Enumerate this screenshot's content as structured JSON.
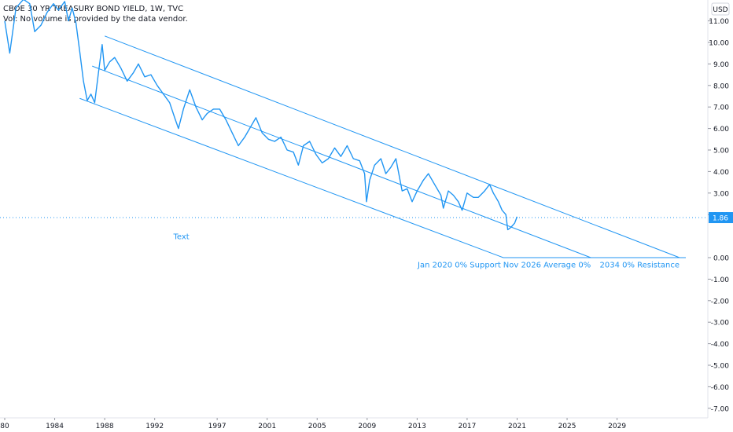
{
  "header": {
    "title": "CBOE 30 YR TREASURY BOND YIELD, 1W, TVC",
    "subtitle": "Vol: No volume is provided by the data vendor."
  },
  "colors": {
    "line": "#2196f3",
    "axis_text": "#131722",
    "price_tag_bg": "#2196f3",
    "axis_border": "#e0e3eb"
  },
  "chart_data": {
    "type": "line",
    "currency_label": "USD",
    "current_price": "1.86",
    "x_range": [
      1980,
      2034.5
    ],
    "ylim": [
      -7.3,
      11.9
    ],
    "x_ticks": [
      "80",
      "1984",
      "1988",
      "1992",
      "1997",
      "2001",
      "2005",
      "2009",
      "2013",
      "2017",
      "2021",
      "2025",
      "2029"
    ],
    "x_tick_years": [
      1980,
      1984,
      1988,
      1992,
      1997,
      2001,
      2005,
      2009,
      2013,
      2017,
      2021,
      2025,
      2029
    ],
    "y_ticks": [
      "11.00",
      "10.00",
      "9.00",
      "8.00",
      "7.00",
      "6.00",
      "5.00",
      "4.00",
      "3.00",
      "2.00",
      "0.00",
      "-1.00",
      "-2.00",
      "-3.00",
      "-4.00",
      "-5.00",
      "-6.00",
      "-7.00"
    ],
    "y_tick_values": [
      11,
      10,
      9,
      8,
      7,
      6,
      5,
      4,
      3,
      2,
      0,
      -1,
      -2,
      -3,
      -4,
      -5,
      -6,
      -7
    ],
    "series": [
      {
        "values": [
          [
            1980.0,
            11.0
          ],
          [
            1980.4,
            9.5
          ],
          [
            1980.9,
            11.6
          ],
          [
            1981.5,
            12.0
          ],
          [
            1982.0,
            11.8
          ],
          [
            1982.4,
            10.5
          ],
          [
            1982.9,
            10.8
          ],
          [
            1983.4,
            11.4
          ],
          [
            1983.9,
            11.8
          ],
          [
            1984.3,
            11.5
          ],
          [
            1984.8,
            11.9
          ],
          [
            1985.1,
            11.0
          ],
          [
            1985.4,
            11.6
          ],
          [
            1985.7,
            10.9
          ],
          [
            1986.0,
            9.6
          ],
          [
            1986.3,
            8.2
          ],
          [
            1986.6,
            7.3
          ],
          [
            1986.9,
            7.6
          ],
          [
            1987.2,
            7.2
          ],
          [
            1987.5,
            8.6
          ],
          [
            1987.8,
            9.9
          ],
          [
            1988.0,
            8.7
          ],
          [
            1988.4,
            9.1
          ],
          [
            1988.8,
            9.3
          ],
          [
            1989.3,
            8.8
          ],
          [
            1989.8,
            8.2
          ],
          [
            1990.3,
            8.6
          ],
          [
            1990.7,
            9.0
          ],
          [
            1991.2,
            8.4
          ],
          [
            1991.7,
            8.5
          ],
          [
            1992.2,
            8.0
          ],
          [
            1992.7,
            7.6
          ],
          [
            1993.2,
            7.2
          ],
          [
            1993.6,
            6.5
          ],
          [
            1993.9,
            6.0
          ],
          [
            1994.3,
            6.9
          ],
          [
            1994.8,
            7.8
          ],
          [
            1995.3,
            7.0
          ],
          [
            1995.8,
            6.4
          ],
          [
            1996.2,
            6.7
          ],
          [
            1996.7,
            6.9
          ],
          [
            1997.2,
            6.9
          ],
          [
            1997.7,
            6.4
          ],
          [
            1998.2,
            5.8
          ],
          [
            1998.7,
            5.2
          ],
          [
            1999.2,
            5.6
          ],
          [
            1999.7,
            6.1
          ],
          [
            2000.1,
            6.5
          ],
          [
            2000.6,
            5.8
          ],
          [
            2001.1,
            5.5
          ],
          [
            2001.6,
            5.4
          ],
          [
            2002.1,
            5.6
          ],
          [
            2002.6,
            5.0
          ],
          [
            2003.1,
            4.9
          ],
          [
            2003.5,
            4.3
          ],
          [
            2003.9,
            5.2
          ],
          [
            2004.4,
            5.4
          ],
          [
            2004.9,
            4.8
          ],
          [
            2005.4,
            4.4
          ],
          [
            2005.9,
            4.6
          ],
          [
            2006.4,
            5.1
          ],
          [
            2006.9,
            4.7
          ],
          [
            2007.4,
            5.2
          ],
          [
            2007.9,
            4.6
          ],
          [
            2008.4,
            4.5
          ],
          [
            2008.8,
            3.9
          ],
          [
            2008.95,
            2.6
          ],
          [
            2009.2,
            3.6
          ],
          [
            2009.6,
            4.3
          ],
          [
            2010.1,
            4.6
          ],
          [
            2010.5,
            3.9
          ],
          [
            2010.9,
            4.2
          ],
          [
            2011.3,
            4.6
          ],
          [
            2011.8,
            3.1
          ],
          [
            2012.2,
            3.2
          ],
          [
            2012.6,
            2.6
          ],
          [
            2013.0,
            3.1
          ],
          [
            2013.5,
            3.6
          ],
          [
            2013.9,
            3.9
          ],
          [
            2014.4,
            3.4
          ],
          [
            2014.9,
            2.9
          ],
          [
            2015.1,
            2.3
          ],
          [
            2015.5,
            3.1
          ],
          [
            2015.9,
            2.9
          ],
          [
            2016.3,
            2.6
          ],
          [
            2016.6,
            2.2
          ],
          [
            2017.0,
            3.0
          ],
          [
            2017.5,
            2.8
          ],
          [
            2017.9,
            2.8
          ],
          [
            2018.4,
            3.1
          ],
          [
            2018.8,
            3.4
          ],
          [
            2019.1,
            3.0
          ],
          [
            2019.5,
            2.6
          ],
          [
            2019.8,
            2.2
          ],
          [
            2020.1,
            2.0
          ],
          [
            2020.25,
            1.3
          ],
          [
            2020.5,
            1.4
          ],
          [
            2020.8,
            1.6
          ],
          [
            2021.0,
            1.9
          ]
        ]
      }
    ],
    "channel_lines": [
      {
        "start": [
          1988.0,
          10.3
        ],
        "end": [
          2034.0,
          0.0
        ]
      },
      {
        "start": [
          1987.0,
          8.9
        ],
        "end": [
          2026.9,
          0.0
        ]
      },
      {
        "start": [
          1986.0,
          7.4
        ],
        "end": [
          2019.9,
          0.0
        ]
      },
      {
        "start": [
          2019.9,
          0.0
        ],
        "end": [
          2034.5,
          0.0
        ]
      }
    ],
    "annotations": [
      {
        "text": "Text",
        "x": 1993.5,
        "y": 0.85
      },
      {
        "text": "Jan 2020 0% Support",
        "x": 2019.7,
        "y": -0.45
      },
      {
        "text": "Nov 2026 Average 0%",
        "x": 2026.9,
        "y": -0.45
      },
      {
        "text": "2034 0% Resistance",
        "x": 2034.0,
        "y": -0.45
      }
    ]
  }
}
